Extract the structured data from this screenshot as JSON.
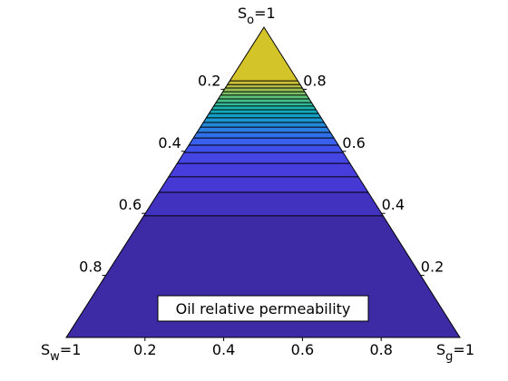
{
  "chart_data": {
    "type": "ternary-contour",
    "annotation": "Oil relative permeability",
    "vertex_labels": {
      "top": {
        "base": "S",
        "sub": "o",
        "rest": "=1"
      },
      "left": {
        "base": "S",
        "sub": "w",
        "rest": "=1"
      },
      "right": {
        "base": "S",
        "sub": "g",
        "rest": "=1"
      }
    },
    "sw_ticks": [
      0.2,
      0.4,
      0.6,
      0.8
    ],
    "so_ticks": [
      0.2,
      0.4,
      0.6,
      0.8
    ],
    "sg_ticks": [
      0.2,
      0.4,
      0.6,
      0.8
    ],
    "levels": [
      0.392,
      0.468,
      0.518,
      0.561,
      0.596,
      0.62,
      0.643,
      0.661,
      0.678,
      0.693,
      0.708,
      0.722,
      0.734,
      0.746,
      0.757,
      0.769,
      0.781,
      0.792,
      0.804,
      0.815,
      0.827
    ],
    "band_colors": [
      "#3d2ba5",
      "#4232c0",
      "#4638d2",
      "#463ddc",
      "#4545e4",
      "#3f50ea",
      "#3860ec",
      "#2f70e8",
      "#2a7ee0",
      "#2389d8",
      "#1b95cf",
      "#13a0c4",
      "#10aab8",
      "#1cb3aa",
      "#2fba9a",
      "#45bf89",
      "#5ec177",
      "#7ac166",
      "#97bf55",
      "#b3bd45",
      "#c9bd37",
      "#d3c429"
    ]
  }
}
